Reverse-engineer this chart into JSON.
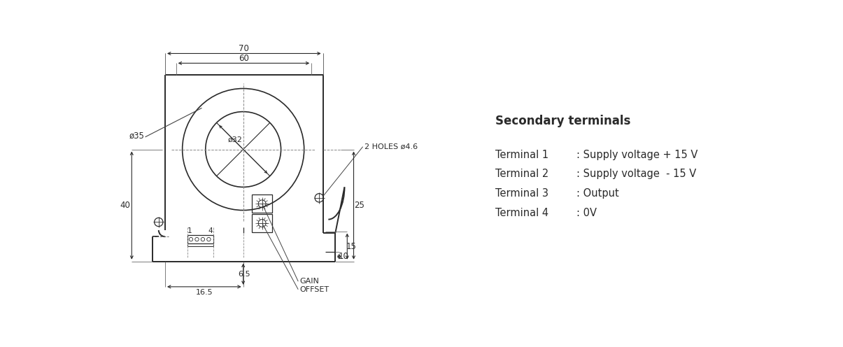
{
  "bg_color": "#ffffff",
  "line_color": "#2a2a2a",
  "text_color": "#2a2a2a",
  "secondary_title": "Secondary terminals",
  "terminals": [
    {
      "name": "Terminal 1",
      "desc": ": Supply voltage + 15 V"
    },
    {
      "name": "Terminal 2",
      "desc": ": Supply voltage  - 15 V"
    },
    {
      "name": "Terminal 3",
      "desc": ": Output"
    },
    {
      "name": "Terminal 4",
      "desc": ": 0V"
    }
  ],
  "dim_70": "70",
  "dim_60": "60",
  "dim_35": "ø35",
  "dim_32": "ø32",
  "dim_40": "40",
  "dim_25": "25",
  "dim_15": "15",
  "dim_10": "10",
  "dim_65": "6.5",
  "dim_165": "16.5",
  "label_holes": "2 HOLES ø4.6",
  "label_gain": "GAIN",
  "label_offset": "OFFSET",
  "label_1": "1",
  "label_4": "4"
}
